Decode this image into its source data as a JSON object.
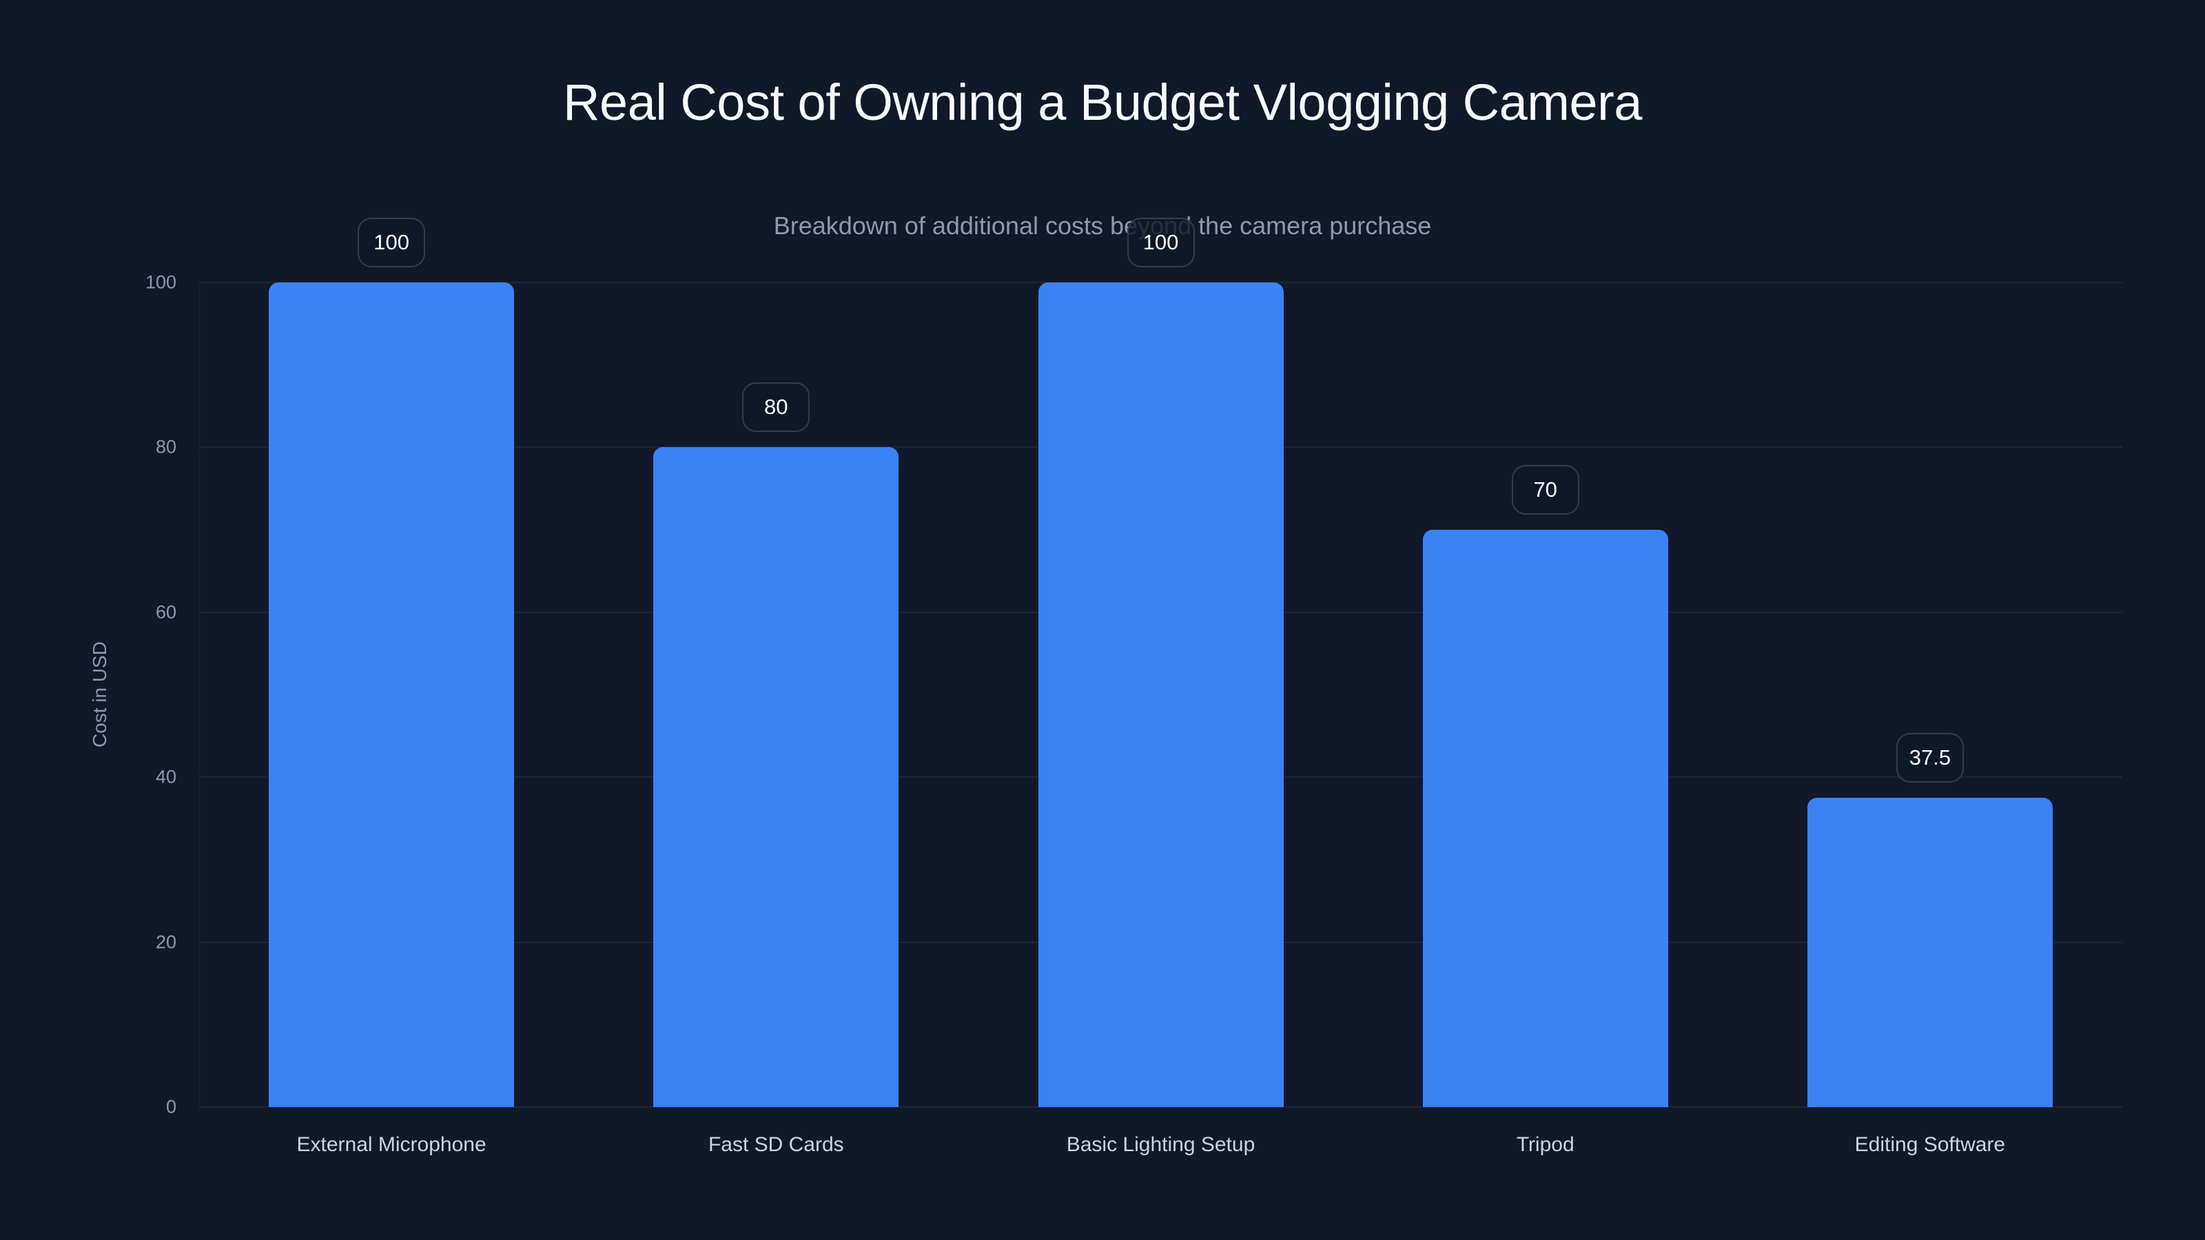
{
  "chart_data": {
    "type": "bar",
    "title": "Real Cost of Owning a Budget Vlogging Camera",
    "subtitle": "Breakdown of additional costs beyond the camera purchase",
    "xlabel": "",
    "ylabel": "Cost in USD",
    "categories": [
      "External Microphone",
      "Fast SD Cards",
      "Basic Lighting Setup",
      "Tripod",
      "Editing Software"
    ],
    "values": [
      100,
      80,
      100,
      70,
      37.5
    ],
    "value_labels": [
      "100",
      "80",
      "100",
      "70",
      "37.5"
    ],
    "ylim": [
      0,
      100
    ],
    "yticks": [
      "0",
      "20",
      "40",
      "60",
      "80",
      "100"
    ],
    "grid": true,
    "legend": null,
    "colors": {
      "bar": "#3b82f6",
      "background": "#10182a",
      "gridline": "#1e2638",
      "title": "#f8fafc",
      "muted_text": "#8b9ab0",
      "category_text": "#cbd5e1"
    }
  }
}
